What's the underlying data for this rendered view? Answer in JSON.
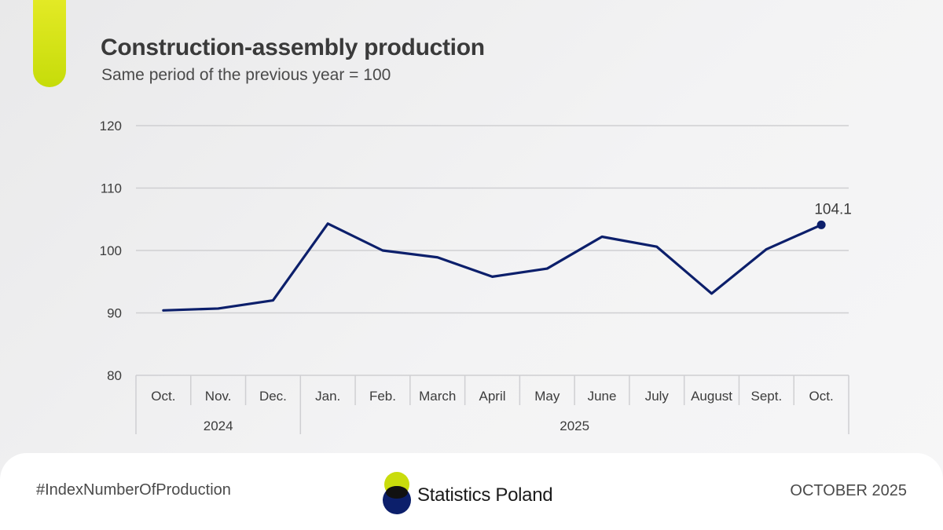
{
  "header": {
    "title": "Construction-assembly production",
    "subtitle": "Same period of the previous year = 100"
  },
  "colors": {
    "line": "#0c1f6b",
    "accent": "#c9dc0c",
    "grid": "#cfcfd2"
  },
  "chart_data": {
    "type": "line",
    "title": "Construction-assembly production",
    "subtitle": "Same period of the previous year = 100",
    "categories": [
      "Oct.",
      "Nov.",
      "Dec.",
      "Jan.",
      "Feb.",
      "March",
      "April",
      "May",
      "June",
      "July",
      "August",
      "Sept.",
      "Oct."
    ],
    "groups": [
      {
        "label": "2024",
        "count": 3
      },
      {
        "label": "2025",
        "count": 10
      }
    ],
    "series": [
      {
        "name": "Construction-assembly production",
        "values": [
          90.4,
          90.7,
          92.0,
          104.3,
          100.0,
          98.9,
          95.8,
          97.1,
          102.2,
          100.6,
          93.1,
          100.2,
          104.1
        ]
      }
    ],
    "annotation": {
      "index": 12,
      "text": "104.1"
    },
    "ylim": [
      80,
      120
    ],
    "yticks": [
      "80",
      "90",
      "100",
      "110",
      "120"
    ],
    "grid": true,
    "xlabel": "",
    "ylabel": ""
  },
  "footer": {
    "hashtag": "#IndexNumberOfProduction",
    "brand": "Statistics Poland",
    "date": "OCTOBER 2025"
  }
}
